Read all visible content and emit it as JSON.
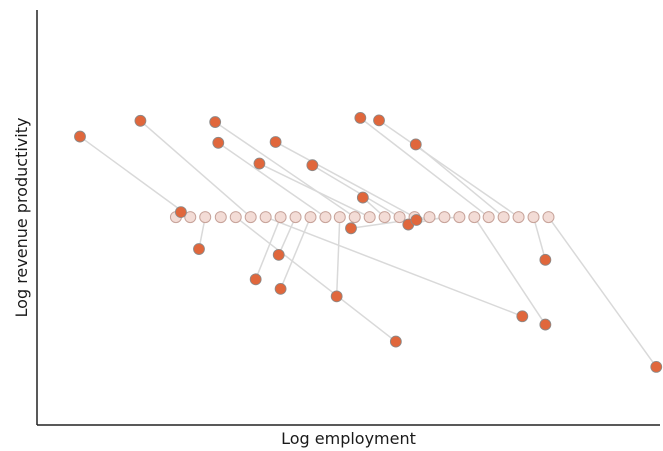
{
  "chart_data": {
    "type": "scatter",
    "xlabel": "Log employment",
    "ylabel": "Log revenue productivity",
    "grid": false,
    "xlim": [
      0,
      100
    ],
    "ylim": [
      0,
      100
    ],
    "colors": {
      "point_fill": "#e0673c",
      "point_edge": "#8a8a8a",
      "hollow_fill": "#f3dcd6",
      "hollow_edge": "#c7a39a",
      "connector": "#d9d9d9",
      "axis": "#222222"
    },
    "series": [
      {
        "role": "observed",
        "points": [
          {
            "x": 6.9,
            "y": 69.5
          },
          {
            "x": 16.6,
            "y": 73.3
          },
          {
            "x": 28.6,
            "y": 73.0
          },
          {
            "x": 29.1,
            "y": 68.0
          },
          {
            "x": 38.3,
            "y": 68.2
          },
          {
            "x": 35.7,
            "y": 63.0
          },
          {
            "x": 44.2,
            "y": 62.6
          },
          {
            "x": 51.9,
            "y": 74.0
          },
          {
            "x": 54.9,
            "y": 73.4
          },
          {
            "x": 60.8,
            "y": 67.6
          },
          {
            "x": 52.3,
            "y": 54.8
          },
          {
            "x": 23.1,
            "y": 51.3
          },
          {
            "x": 26.0,
            "y": 42.4
          },
          {
            "x": 35.1,
            "y": 35.1
          },
          {
            "x": 39.1,
            "y": 32.8
          },
          {
            "x": 38.8,
            "y": 41.0
          },
          {
            "x": 48.1,
            "y": 31.0
          },
          {
            "x": 50.4,
            "y": 47.4
          },
          {
            "x": 57.6,
            "y": 20.1
          },
          {
            "x": 59.6,
            "y": 48.3
          },
          {
            "x": 60.9,
            "y": 49.4
          },
          {
            "x": 77.9,
            "y": 26.2
          },
          {
            "x": 81.6,
            "y": 24.2
          },
          {
            "x": 81.6,
            "y": 39.8
          },
          {
            "x": 99.4,
            "y": 14.0
          }
        ]
      },
      {
        "role": "counterfactual",
        "points": [
          {
            "x": 22.3,
            "y": 50.1
          },
          {
            "x": 24.6,
            "y": 50.1
          },
          {
            "x": 27.0,
            "y": 50.1
          },
          {
            "x": 29.5,
            "y": 50.1
          },
          {
            "x": 31.9,
            "y": 50.1
          },
          {
            "x": 34.3,
            "y": 50.1
          },
          {
            "x": 36.7,
            "y": 50.1
          },
          {
            "x": 39.1,
            "y": 50.1
          },
          {
            "x": 41.5,
            "y": 50.1
          },
          {
            "x": 43.9,
            "y": 50.1
          },
          {
            "x": 46.3,
            "y": 50.1
          },
          {
            "x": 48.6,
            "y": 50.1
          },
          {
            "x": 51.0,
            "y": 50.1
          },
          {
            "x": 53.4,
            "y": 50.1
          },
          {
            "x": 55.8,
            "y": 50.1
          },
          {
            "x": 58.2,
            "y": 50.1
          },
          {
            "x": 60.6,
            "y": 50.1
          },
          {
            "x": 63.0,
            "y": 50.1
          },
          {
            "x": 65.4,
            "y": 50.1
          },
          {
            "x": 67.8,
            "y": 50.1
          },
          {
            "x": 70.2,
            "y": 50.1
          },
          {
            "x": 72.5,
            "y": 50.1
          },
          {
            "x": 74.9,
            "y": 50.1
          },
          {
            "x": 77.3,
            "y": 50.1
          },
          {
            "x": 79.7,
            "y": 50.1
          },
          {
            "x": 82.1,
            "y": 50.1
          }
        ]
      }
    ],
    "links": [
      {
        "observed": 0,
        "counterfactual": 1
      },
      {
        "observed": 1,
        "counterfactual": 5
      },
      {
        "observed": 2,
        "counterfactual": 12
      },
      {
        "observed": 3,
        "counterfactual": 10
      },
      {
        "observed": 4,
        "counterfactual": 16
      },
      {
        "observed": 5,
        "counterfactual": 13
      },
      {
        "observed": 6,
        "counterfactual": 15
      },
      {
        "observed": 7,
        "counterfactual": 21
      },
      {
        "observed": 8,
        "counterfactual": 23
      },
      {
        "observed": 9,
        "counterfactual": 22
      },
      {
        "observed": 10,
        "counterfactual": 14
      },
      {
        "observed": 11,
        "counterfactual": 0
      },
      {
        "observed": 12,
        "counterfactual": 2
      },
      {
        "observed": 13,
        "counterfactual": 7
      },
      {
        "observed": 14,
        "counterfactual": 9
      },
      {
        "observed": 15,
        "counterfactual": 8
      },
      {
        "observed": 16,
        "counterfactual": 11
      },
      {
        "observed": 17,
        "counterfactual": 17
      },
      {
        "observed": 18,
        "counterfactual": 4
      },
      {
        "observed": 19,
        "counterfactual": 18
      },
      {
        "observed": 20,
        "counterfactual": 19
      },
      {
        "observed": 21,
        "counterfactual": 6
      },
      {
        "observed": 22,
        "counterfactual": 20
      },
      {
        "observed": 23,
        "counterfactual": 24
      },
      {
        "observed": 24,
        "counterfactual": 25
      }
    ]
  }
}
